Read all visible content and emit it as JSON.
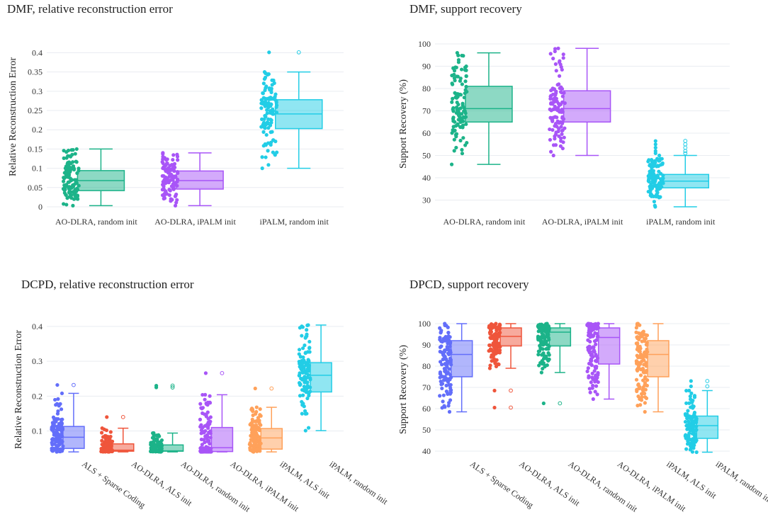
{
  "chart_data": [
    {
      "type": "box",
      "title": "DMF, relative reconstruction error",
      "xlabel": "",
      "ylabel": "Relative Reconstruction Error",
      "ylim": [
        0,
        0.41
      ],
      "yticks": [
        0,
        0.05,
        0.1,
        0.15,
        0.2,
        0.25,
        0.3,
        0.35,
        0.4
      ],
      "ytick_labels": [
        "0",
        "0.05",
        "0.1",
        "0.15",
        "0.2",
        "0.25",
        "0.3",
        "0.35",
        "0.4"
      ],
      "rotate_xlabels": false,
      "categories": [
        "AO-DLRA, random init",
        "AO-DLRA, iPALM init",
        "iPALM, random init"
      ],
      "series": [
        {
          "name": "AO-DLRA, random init",
          "color": "#1cb389",
          "min": 0.003,
          "q1": 0.042,
          "median": 0.068,
          "q3": 0.094,
          "max": 0.15,
          "points": 110
        },
        {
          "name": "AO-DLRA, iPALM init",
          "color": "#a855f7",
          "min": 0.003,
          "q1": 0.046,
          "median": 0.068,
          "q3": 0.093,
          "max": 0.14,
          "points": 110
        },
        {
          "name": "iPALM, random init",
          "color": "#22cde6",
          "min": 0.1,
          "q1": 0.203,
          "median": 0.241,
          "q3": 0.278,
          "max": 0.35,
          "outliers": [
            0.401
          ],
          "points": 110
        }
      ]
    },
    {
      "type": "box",
      "title": "DMF, support recovery",
      "xlabel": "",
      "ylabel": "Support Recovery (%)",
      "ylim": [
        27,
        100
      ],
      "yticks": [
        30,
        40,
        50,
        60,
        70,
        80,
        90,
        100
      ],
      "ytick_labels": [
        "30",
        "40",
        "50",
        "60",
        "70",
        "80",
        "90",
        "100"
      ],
      "rotate_xlabels": false,
      "categories": [
        "AO-DLRA, random init",
        "AO-DLRA, iPALM init",
        "iPALM, random init"
      ],
      "series": [
        {
          "name": "AO-DLRA, random init",
          "color": "#1cb389",
          "min": 46,
          "q1": 65,
          "median": 71,
          "q3": 81,
          "max": 96,
          "points": 110
        },
        {
          "name": "AO-DLRA, iPALM init",
          "color": "#a855f7",
          "min": 50,
          "q1": 65,
          "median": 71,
          "q3": 79,
          "max": 98,
          "points": 110
        },
        {
          "name": "iPALM, random init",
          "color": "#22cde6",
          "min": 27,
          "q1": 35.5,
          "median": 38.5,
          "q3": 41.5,
          "max": 50,
          "outliers": [
            51,
            52,
            53.5,
            55,
            56.5
          ],
          "points": 110
        }
      ]
    },
    {
      "type": "box",
      "title": "DCPD, relative reconstruction error",
      "xlabel": "",
      "ylabel": "Relative Reconstruction Error",
      "ylim": [
        0.03,
        0.41
      ],
      "yticks": [
        0.1,
        0.2,
        0.3,
        0.4
      ],
      "ytick_labels": [
        "0.1",
        "0.2",
        "0.3",
        "0.4"
      ],
      "rotate_xlabels": true,
      "categories": [
        "ALS + Sparse Coding",
        "AO-DLRA, ALS init",
        "AO-DLRA, random init",
        "AO-DLRA, iPALM init",
        "iPALM, ALS init",
        "iPALM, random init"
      ],
      "series": [
        {
          "name": "ALS + Sparse Coding",
          "color": "#636efa",
          "min": 0.04,
          "q1": 0.05,
          "median": 0.082,
          "q3": 0.113,
          "max": 0.208,
          "outliers": [
            0.232
          ],
          "points": 120
        },
        {
          "name": "AO-DLRA, ALS init",
          "color": "#ef553b",
          "min": 0.04,
          "q1": 0.042,
          "median": 0.045,
          "q3": 0.063,
          "max": 0.108,
          "outliers": [
            0.14
          ],
          "points": 120
        },
        {
          "name": "AO-DLRA, random init",
          "color": "#1cb389",
          "min": 0.04,
          "q1": 0.042,
          "median": 0.043,
          "q3": 0.06,
          "max": 0.094,
          "outliers": [
            0.225,
            0.23
          ],
          "points": 120
        },
        {
          "name": "AO-DLRA, iPALM init",
          "color": "#a855f7",
          "min": 0.04,
          "q1": 0.041,
          "median": 0.052,
          "q3": 0.11,
          "max": 0.204,
          "outliers": [
            0.266
          ],
          "points": 120
        },
        {
          "name": "iPALM, ALS init",
          "color": "#ffa15a",
          "min": 0.04,
          "q1": 0.048,
          "median": 0.08,
          "q3": 0.107,
          "max": 0.168,
          "outliers": [
            0.222
          ],
          "points": 120
        },
        {
          "name": "iPALM, random init",
          "color": "#22cde6",
          "min": 0.101,
          "q1": 0.212,
          "median": 0.26,
          "q3": 0.296,
          "max": 0.404,
          "points": 120
        }
      ]
    },
    {
      "type": "box",
      "title": "DPCD, support recovery",
      "xlabel": "",
      "ylabel": "Support Recovery (%)",
      "ylim": [
        38,
        101
      ],
      "yticks": [
        40,
        50,
        60,
        70,
        80,
        90,
        100
      ],
      "ytick_labels": [
        "40",
        "50",
        "60",
        "70",
        "80",
        "90",
        "100"
      ],
      "rotate_xlabels": true,
      "categories": [
        "ALS + Sparse Coding",
        "AO-DLRA, ALS init",
        "AO-DLRA, random init",
        "AO-DLRA, iPALM init",
        "iPALM, ALS init",
        "iPALM, random init"
      ],
      "series": [
        {
          "name": "ALS + Sparse Coding",
          "color": "#636efa",
          "min": 58.5,
          "q1": 75,
          "median": 85.5,
          "q3": 92,
          "max": 100,
          "points": 120
        },
        {
          "name": "AO-DLRA, ALS init",
          "color": "#ef553b",
          "min": 79,
          "q1": 89.5,
          "median": 94,
          "q3": 98,
          "max": 100,
          "outliers": [
            68.5,
            60.5
          ],
          "points": 120
        },
        {
          "name": "AO-DLRA, random init",
          "color": "#1cb389",
          "min": 77,
          "q1": 89.5,
          "median": 96,
          "q3": 98,
          "max": 100,
          "outliers": [
            62.5
          ],
          "points": 120
        },
        {
          "name": "AO-DLRA, iPALM init",
          "color": "#a855f7",
          "min": 64.5,
          "q1": 81,
          "median": 93.5,
          "q3": 98,
          "max": 100,
          "points": 120
        },
        {
          "name": "iPALM, ALS init",
          "color": "#ffa15a",
          "min": 58.5,
          "q1": 75,
          "median": 85.5,
          "q3": 92,
          "max": 100,
          "points": 120
        },
        {
          "name": "iPALM, random init",
          "color": "#22cde6",
          "min": 39.5,
          "q1": 46,
          "median": 52,
          "q3": 56.5,
          "max": 68.5,
          "outliers": [
            70.5,
            73
          ],
          "points": 120
        }
      ]
    }
  ]
}
